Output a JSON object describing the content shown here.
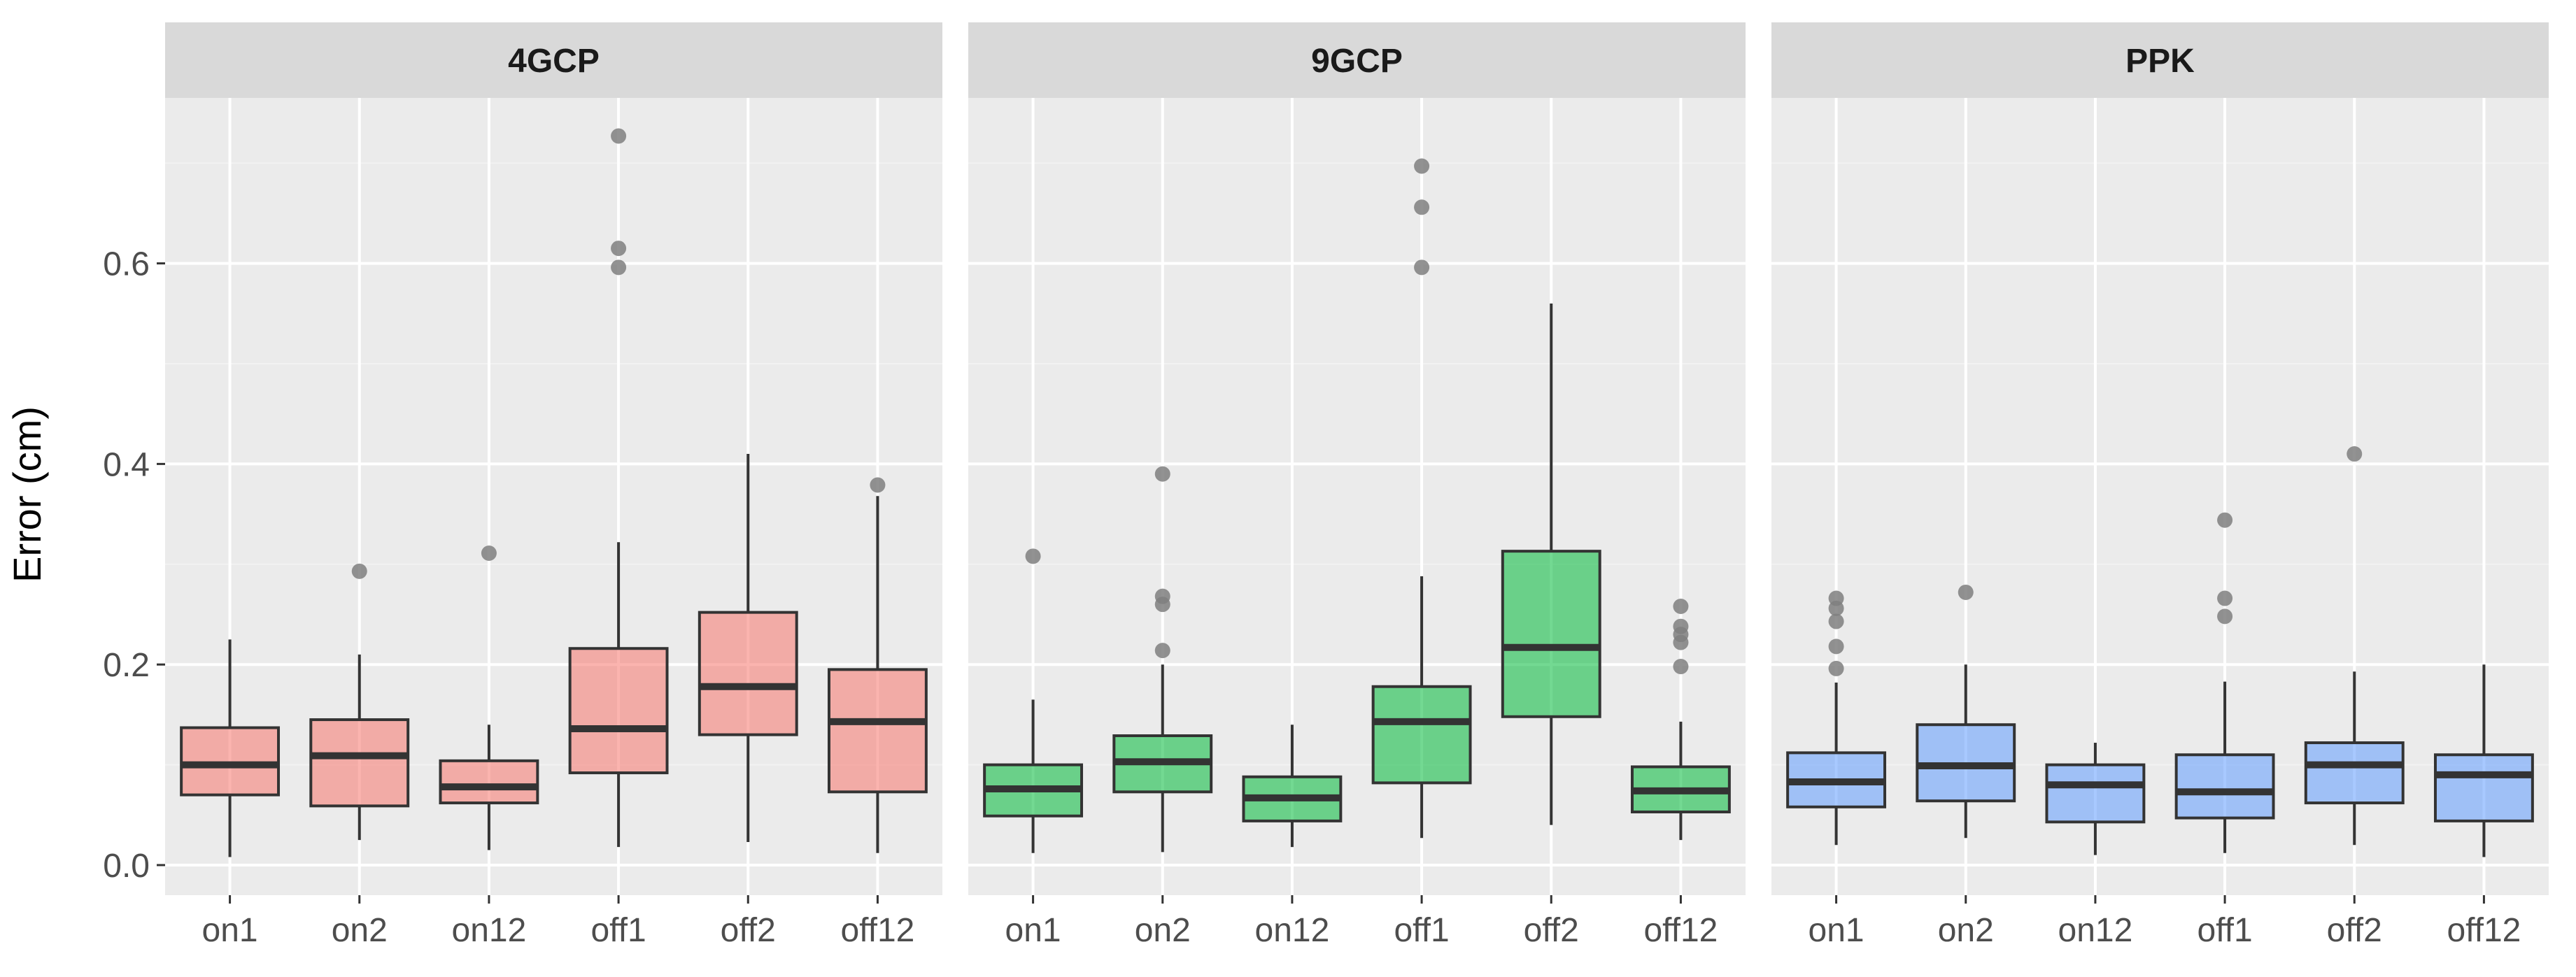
{
  "chart_data": {
    "type": "boxplot",
    "ylabel": "Error (cm)",
    "xlabel": "",
    "ylim": [
      -0.03,
      0.765
    ],
    "yticks": [
      0.0,
      0.2,
      0.4,
      0.6
    ],
    "ytick_labels": [
      "0.0",
      "0.2",
      "0.4",
      "0.6"
    ],
    "categories": [
      "on1",
      "on2",
      "on12",
      "off1",
      "off2",
      "off12"
    ],
    "panels": [
      {
        "title": "4GCP",
        "fill": "#F8766D",
        "boxes": [
          {
            "category": "on1",
            "min": 0.008,
            "q1": 0.07,
            "median": 0.1,
            "q3": 0.137,
            "max": 0.225,
            "outliers": []
          },
          {
            "category": "on2",
            "min": 0.025,
            "q1": 0.059,
            "median": 0.109,
            "q3": 0.145,
            "max": 0.21,
            "outliers": [
              0.293
            ]
          },
          {
            "category": "on12",
            "min": 0.015,
            "q1": 0.062,
            "median": 0.078,
            "q3": 0.104,
            "max": 0.14,
            "outliers": [
              0.311
            ]
          },
          {
            "category": "off1",
            "min": 0.018,
            "q1": 0.092,
            "median": 0.136,
            "q3": 0.216,
            "max": 0.322,
            "outliers": [
              0.596,
              0.615,
              0.727
            ]
          },
          {
            "category": "off2",
            "min": 0.023,
            "q1": 0.13,
            "median": 0.178,
            "q3": 0.252,
            "max": 0.41,
            "outliers": []
          },
          {
            "category": "off12",
            "min": 0.012,
            "q1": 0.073,
            "median": 0.143,
            "q3": 0.195,
            "max": 0.368,
            "outliers": [
              0.379
            ]
          }
        ]
      },
      {
        "title": "9GCP",
        "fill": "#00BA38",
        "boxes": [
          {
            "category": "on1",
            "min": 0.012,
            "q1": 0.049,
            "median": 0.076,
            "q3": 0.1,
            "max": 0.165,
            "outliers": [
              0.308
            ]
          },
          {
            "category": "on2",
            "min": 0.013,
            "q1": 0.073,
            "median": 0.103,
            "q3": 0.129,
            "max": 0.2,
            "outliers": [
              0.214,
              0.26,
              0.268,
              0.39
            ]
          },
          {
            "category": "on12",
            "min": 0.018,
            "q1": 0.044,
            "median": 0.067,
            "q3": 0.088,
            "max": 0.14,
            "outliers": []
          },
          {
            "category": "off1",
            "min": 0.027,
            "q1": 0.082,
            "median": 0.143,
            "q3": 0.178,
            "max": 0.288,
            "outliers": [
              0.596,
              0.656,
              0.697
            ]
          },
          {
            "category": "off2",
            "min": 0.04,
            "q1": 0.148,
            "median": 0.217,
            "q3": 0.313,
            "max": 0.56,
            "outliers": []
          },
          {
            "category": "off12",
            "min": 0.025,
            "q1": 0.053,
            "median": 0.074,
            "q3": 0.098,
            "max": 0.143,
            "outliers": [
              0.198,
              0.222,
              0.23,
              0.238,
              0.258
            ]
          }
        ]
      },
      {
        "title": "PPK",
        "fill": "#619CFF",
        "boxes": [
          {
            "category": "on1",
            "min": 0.02,
            "q1": 0.058,
            "median": 0.083,
            "q3": 0.112,
            "max": 0.182,
            "outliers": [
              0.196,
              0.218,
              0.243,
              0.256,
              0.266
            ]
          },
          {
            "category": "on2",
            "min": 0.027,
            "q1": 0.064,
            "median": 0.099,
            "q3": 0.14,
            "max": 0.2,
            "outliers": [
              0.272
            ]
          },
          {
            "category": "on12",
            "min": 0.01,
            "q1": 0.043,
            "median": 0.08,
            "q3": 0.1,
            "max": 0.122,
            "outliers": []
          },
          {
            "category": "off1",
            "min": 0.012,
            "q1": 0.047,
            "median": 0.073,
            "q3": 0.11,
            "max": 0.183,
            "outliers": [
              0.248,
              0.266,
              0.344
            ]
          },
          {
            "category": "off2",
            "min": 0.02,
            "q1": 0.062,
            "median": 0.1,
            "q3": 0.122,
            "max": 0.193,
            "outliers": [
              0.41
            ]
          },
          {
            "category": "off12",
            "min": 0.008,
            "q1": 0.044,
            "median": 0.09,
            "q3": 0.11,
            "max": 0.2,
            "outliers": []
          }
        ]
      }
    ],
    "legend": "none",
    "grid": true
  },
  "colors": {
    "panel_background": "#EBEBEB",
    "strip_background": "#D9D9D9",
    "grid_major": "#FFFFFF",
    "grid_minor": "#F2F2F2",
    "outline": "#333333",
    "outlier": "#7F7F7F"
  }
}
